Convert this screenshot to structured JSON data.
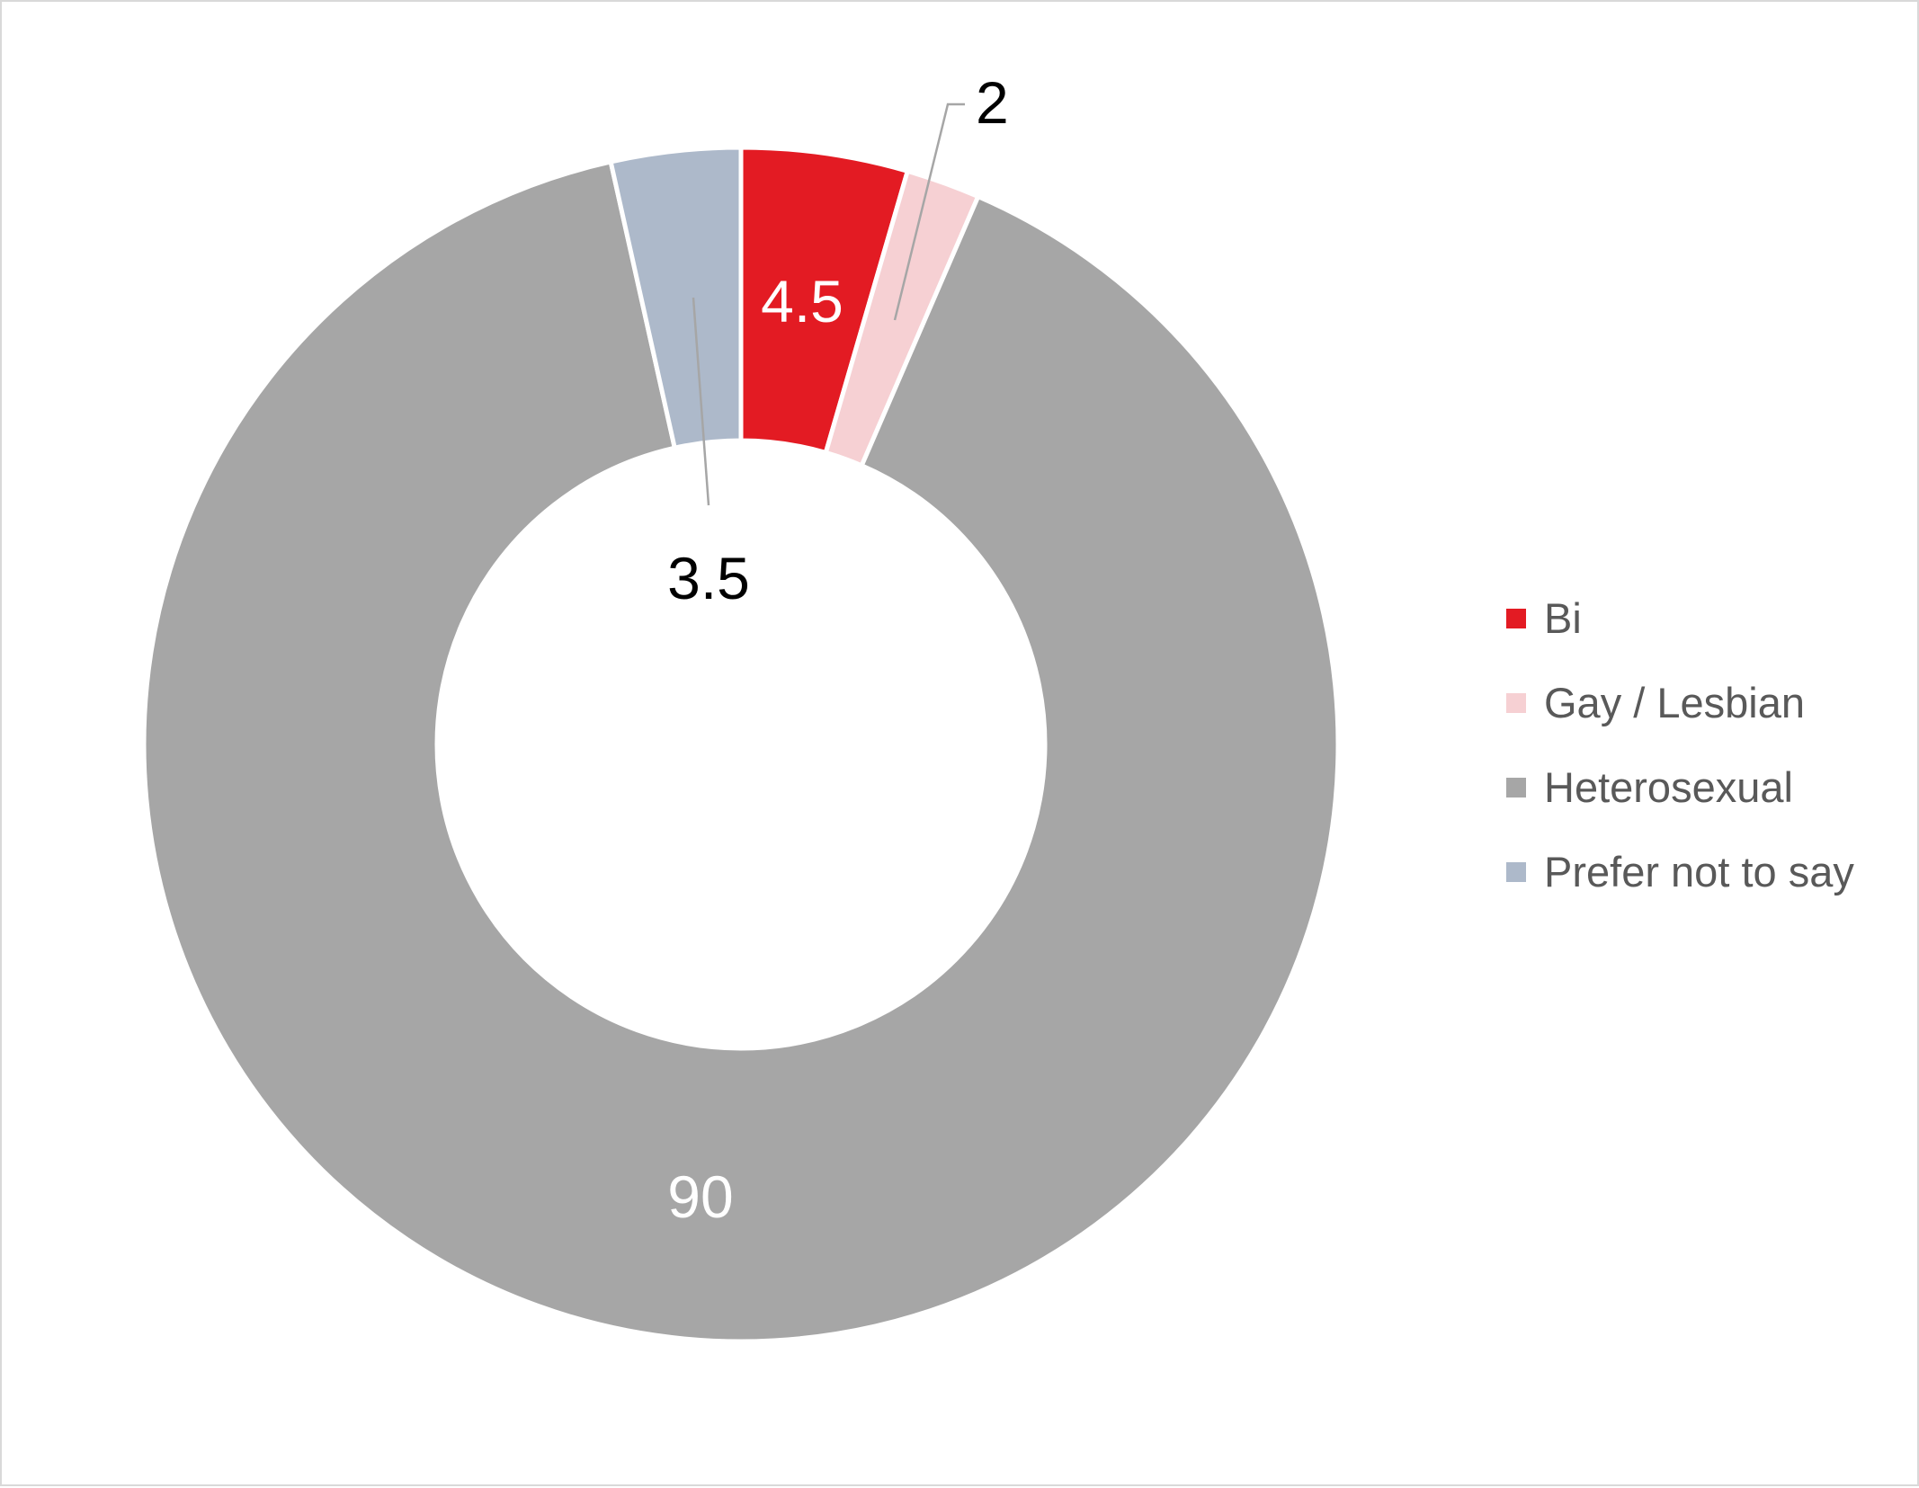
{
  "chart_data": {
    "type": "pie",
    "variant": "donut",
    "title": "",
    "categories": [
      "Bi",
      "Gay / Lesbian",
      "Heterosexual",
      "Prefer not to say"
    ],
    "values": [
      4.5,
      2,
      90,
      3.5
    ],
    "data_labels": [
      "4.5",
      "2",
      "90",
      "3.5"
    ],
    "colors": [
      "#e31b23",
      "#f6d0d3",
      "#a6a6a6",
      "#adb9ca"
    ],
    "label_colors": [
      "#ffffff",
      "#000000",
      "#ffffff",
      "#000000"
    ],
    "legend_position": "right",
    "start_angle_deg": 0,
    "direction": "clockwise"
  }
}
